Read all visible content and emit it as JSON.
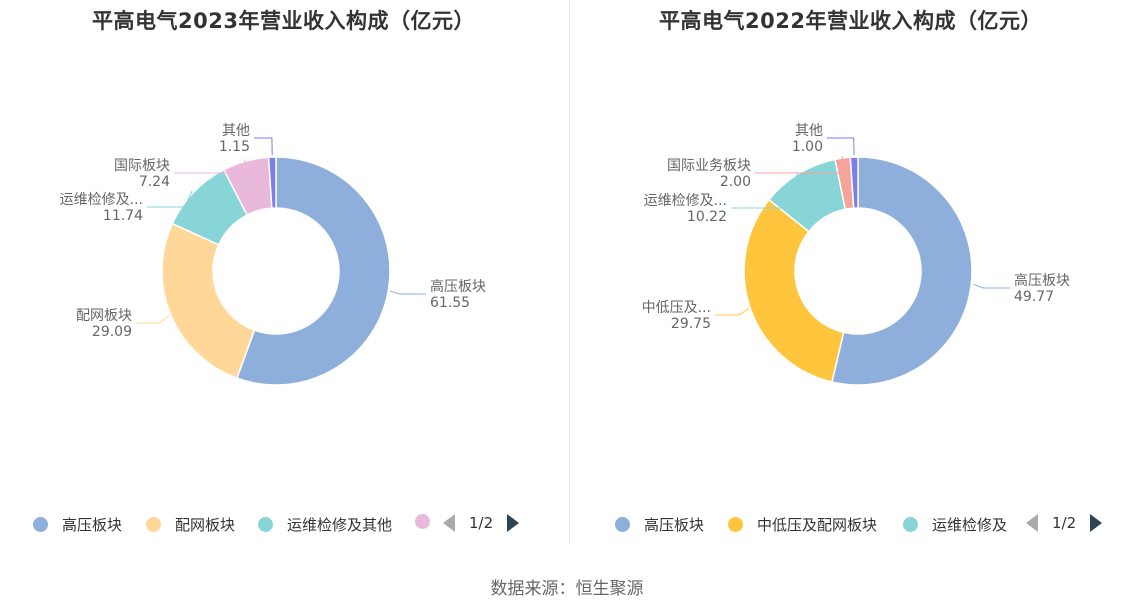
{
  "source": "数据来源：恒生聚源",
  "chart_data": [
    {
      "type": "pie",
      "title": "平高电气2023年营业收入构成（亿元）",
      "slices": [
        {
          "name": "高压板块",
          "label": "高压板块",
          "value": 61.55,
          "value_text": "61.55",
          "color": "#8eaedb"
        },
        {
          "name": "配网板块",
          "label": "配网板块",
          "value": 29.09,
          "value_text": "29.09",
          "color": "#ffd899"
        },
        {
          "name": "运维检修及其他",
          "label": "运维检修及...",
          "value": 11.74,
          "value_text": "11.74",
          "color": "#88d5d7"
        },
        {
          "name": "国际板块",
          "label": "国际板块",
          "value": 7.24,
          "value_text": "7.24",
          "color": "#e8b9da"
        },
        {
          "name": "其他",
          "label": "其他",
          "value": 1.15,
          "value_text": "1.15",
          "color": "#7a7ef0"
        }
      ],
      "legend": {
        "items": [
          {
            "label": "高压板块",
            "color": "#8eaedb"
          },
          {
            "label": "配网板块",
            "color": "#ffd899"
          },
          {
            "label": "运维检修及其他",
            "color": "#88d5d7"
          },
          {
            "label": "",
            "color": "#e8b9da"
          }
        ],
        "page": "1/2"
      }
    },
    {
      "type": "pie",
      "title": "平高电气2022年营业收入构成（亿元）",
      "slices": [
        {
          "name": "高压板块",
          "label": "高压板块",
          "value": 49.77,
          "value_text": "49.77",
          "color": "#8eaedb"
        },
        {
          "name": "中低压及配网板块",
          "label": "中低压及...",
          "value": 29.75,
          "value_text": "29.75",
          "color": "#ffc63d"
        },
        {
          "name": "运维检修及",
          "label": "运维检修及...",
          "value": 10.22,
          "value_text": "10.22",
          "color": "#88d5d7"
        },
        {
          "name": "国际业务板块",
          "label": "国际业务板块",
          "value": 2.0,
          "value_text": "2.00",
          "color": "#f5a49c"
        },
        {
          "name": "其他",
          "label": "其他",
          "value": 1.0,
          "value_text": "1.00",
          "color": "#7a7ef0"
        }
      ],
      "legend": {
        "items": [
          {
            "label": "高压板块",
            "color": "#8eaedb"
          },
          {
            "label": "中低压及配网板块",
            "color": "#ffc63d"
          },
          {
            "label": "运维检修及",
            "color": "#88d5d7"
          }
        ],
        "page": "1/2"
      }
    }
  ]
}
